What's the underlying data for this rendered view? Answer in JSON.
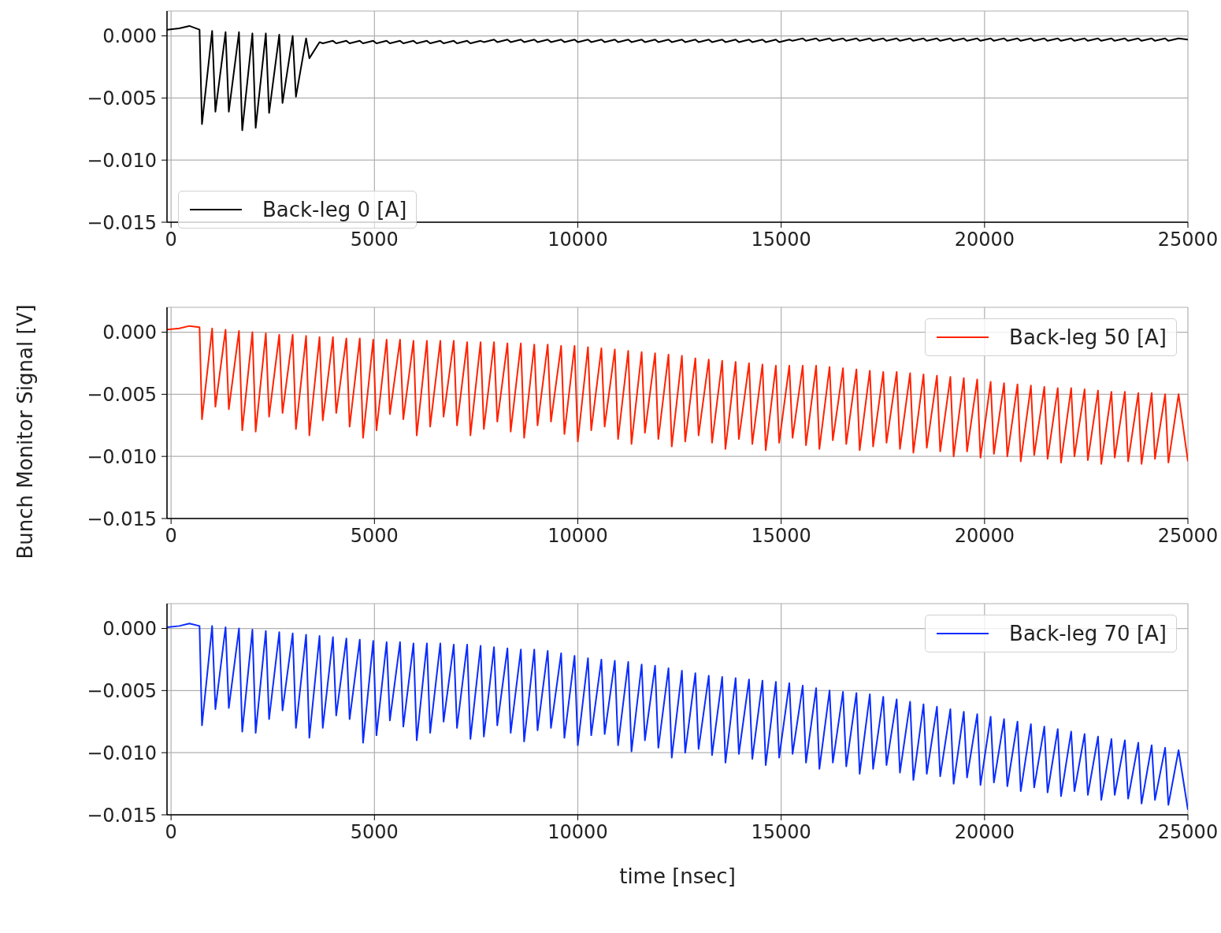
{
  "chart_data": [
    {
      "type": "line",
      "xlim": [
        -100,
        25000
      ],
      "xticks": [
        0,
        5000,
        10000,
        15000,
        20000,
        25000
      ],
      "ylim": [
        -0.015,
        0.002
      ],
      "yticks": [
        {
          "value": -0.015,
          "label": "−0.015"
        },
        {
          "value": -0.01,
          "label": "−0.010"
        },
        {
          "value": -0.005,
          "label": "−0.005"
        },
        {
          "value": 0,
          "label": "0.000"
        }
      ],
      "grid": true,
      "legend": "bottom left",
      "x": [
        -100,
        200,
        450,
        700,
        760,
        1010,
        1090,
        1340,
        1420,
        1670,
        1750,
        2000,
        2080,
        2330,
        2410,
        2660,
        2740,
        2990,
        3070,
        3320,
        3400,
        3650,
        3730,
        3980,
        4060,
        4310,
        4390,
        4640,
        4720,
        4970,
        5050,
        5300,
        5380,
        5630,
        5710,
        5960,
        6040,
        6290,
        6370,
        6620,
        6700,
        6950,
        7030,
        7280,
        7360,
        7610,
        7690,
        7940,
        8020,
        8270,
        8350,
        8600,
        8680,
        8930,
        9010,
        9260,
        9340,
        9590,
        9670,
        9920,
        10000,
        10250,
        10330,
        10580,
        10660,
        10910,
        10990,
        11240,
        11320,
        11570,
        11650,
        11900,
        11980,
        12230,
        12310,
        12560,
        12640,
        12890,
        12970,
        13220,
        13300,
        13550,
        13630,
        13880,
        13960,
        14210,
        14290,
        14540,
        14620,
        14870,
        14950,
        15200,
        15280,
        15530,
        15610,
        15860,
        15940,
        16190,
        16270,
        16520,
        16600,
        16850,
        16930,
        17180,
        17260,
        17510,
        17590,
        17840,
        17920,
        18170,
        18250,
        18500,
        18580,
        18830,
        18910,
        19160,
        19240,
        19490,
        19570,
        19820,
        19900,
        20150,
        20230,
        20480,
        20560,
        20810,
        20890,
        21140,
        21220,
        21470,
        21550,
        21800,
        21880,
        22130,
        22210,
        22460,
        22540,
        22790,
        22870,
        23120,
        23200,
        23450,
        23530,
        23780,
        23860,
        24110,
        24190,
        24440,
        24520,
        24770,
        25000
      ],
      "series": [
        {
          "name": "Back-leg 0 [A]",
          "color": "#000000",
          "values": [
            0.0005,
            0.0006,
            0.0008,
            0.0005,
            -0.0071,
            0.0004,
            -0.0061,
            0.0003,
            -0.0061,
            0.0003,
            -0.0076,
            0.0002,
            -0.0074,
            0.0002,
            -0.0062,
            0.0001,
            -0.0054,
            0.0,
            -0.0049,
            -0.0002,
            -0.0018,
            -0.0005,
            -0.0006,
            -0.0004,
            -0.0006,
            -0.0004,
            -0.0006,
            -0.0004,
            -0.0006,
            -0.0004,
            -0.0006,
            -0.0004,
            -0.0006,
            -0.0004,
            -0.0006,
            -0.0004,
            -0.0006,
            -0.0004,
            -0.0006,
            -0.0004,
            -0.0006,
            -0.0004,
            -0.0006,
            -0.0004,
            -0.0006,
            -0.0004,
            -0.0005,
            -0.0003,
            -0.0005,
            -0.0003,
            -0.0005,
            -0.0003,
            -0.0005,
            -0.0003,
            -0.0005,
            -0.0003,
            -0.0005,
            -0.0003,
            -0.0005,
            -0.0003,
            -0.0005,
            -0.0003,
            -0.0005,
            -0.0003,
            -0.0005,
            -0.0003,
            -0.0005,
            -0.0003,
            -0.0005,
            -0.0003,
            -0.0005,
            -0.0003,
            -0.0005,
            -0.0003,
            -0.0005,
            -0.0003,
            -0.0005,
            -0.0003,
            -0.0005,
            -0.0003,
            -0.0005,
            -0.0003,
            -0.0005,
            -0.0003,
            -0.0005,
            -0.0003,
            -0.0005,
            -0.0003,
            -0.0005,
            -0.0003,
            -0.0005,
            -0.0003,
            -0.0004,
            -0.0002,
            -0.0004,
            -0.0002,
            -0.0004,
            -0.0002,
            -0.0004,
            -0.0002,
            -0.0004,
            -0.0002,
            -0.0004,
            -0.0002,
            -0.0004,
            -0.0002,
            -0.0004,
            -0.0002,
            -0.0004,
            -0.0002,
            -0.0004,
            -0.0002,
            -0.0004,
            -0.0002,
            -0.0004,
            -0.0002,
            -0.0004,
            -0.0002,
            -0.0004,
            -0.0002,
            -0.0004,
            -0.0002,
            -0.0004,
            -0.0002,
            -0.0004,
            -0.0002,
            -0.0004,
            -0.0002,
            -0.0004,
            -0.0002,
            -0.0004,
            -0.0002,
            -0.0004,
            -0.0002,
            -0.0004,
            -0.0002,
            -0.0004,
            -0.0002,
            -0.0004,
            -0.0002,
            -0.0004,
            -0.0002,
            -0.0004,
            -0.0002,
            -0.0004,
            -0.0002,
            -0.0004,
            -0.0002,
            -0.0004,
            -0.0002,
            -0.0003
          ]
        }
      ]
    },
    {
      "type": "line",
      "xlim": [
        -100,
        25000
      ],
      "xticks": [
        0,
        5000,
        10000,
        15000,
        20000,
        25000
      ],
      "ylim": [
        -0.015,
        0.002
      ],
      "yticks": [
        {
          "value": -0.015,
          "label": "−0.015"
        },
        {
          "value": -0.01,
          "label": "−0.010"
        },
        {
          "value": -0.005,
          "label": "−0.005"
        },
        {
          "value": 0,
          "label": "0.000"
        }
      ],
      "grid": true,
      "legend": "top right",
      "ylabel": "Bunch Monitor Signal [V]",
      "x": [
        -100,
        200,
        450,
        700,
        760,
        1010,
        1090,
        1340,
        1420,
        1670,
        1750,
        2000,
        2080,
        2330,
        2410,
        2660,
        2740,
        2990,
        3070,
        3320,
        3400,
        3650,
        3730,
        3980,
        4060,
        4310,
        4390,
        4640,
        4720,
        4970,
        5050,
        5300,
        5380,
        5630,
        5710,
        5960,
        6040,
        6290,
        6370,
        6620,
        6700,
        6950,
        7030,
        7280,
        7360,
        7610,
        7690,
        7940,
        8020,
        8270,
        8350,
        8600,
        8680,
        8930,
        9010,
        9260,
        9340,
        9590,
        9670,
        9920,
        10000,
        10250,
        10330,
        10580,
        10660,
        10910,
        10990,
        11240,
        11320,
        11570,
        11650,
        11900,
        11980,
        12230,
        12310,
        12560,
        12640,
        12890,
        12970,
        13220,
        13300,
        13550,
        13630,
        13880,
        13960,
        14210,
        14290,
        14540,
        14620,
        14870,
        14950,
        15200,
        15280,
        15530,
        15610,
        15860,
        15940,
        16190,
        16270,
        16520,
        16600,
        16850,
        16930,
        17180,
        17260,
        17510,
        17590,
        17840,
        17920,
        18170,
        18250,
        18500,
        18580,
        18830,
        18910,
        19160,
        19240,
        19490,
        19570,
        19820,
        19900,
        20150,
        20230,
        20480,
        20560,
        20810,
        20890,
        21140,
        21220,
        21470,
        21550,
        21800,
        21880,
        22130,
        22210,
        22460,
        22540,
        22790,
        22870,
        23120,
        23200,
        23450,
        23530,
        23780,
        23860,
        24110,
        24190,
        24440,
        24520,
        24770,
        25000
      ],
      "series": [
        {
          "name": "Back-leg 50 [A]",
          "color": "#ff2200",
          "values": [
            0.0002,
            0.0003,
            0.0005,
            0.0004,
            -0.007,
            0.0003,
            -0.006,
            0.0002,
            -0.0062,
            0.0001,
            -0.0079,
            0.0,
            -0.008,
            -0.0001,
            -0.0068,
            -0.0002,
            -0.0065,
            -0.0002,
            -0.0078,
            -0.0003,
            -0.0083,
            -0.0004,
            -0.0071,
            -0.0004,
            -0.0065,
            -0.0005,
            -0.0076,
            -0.0005,
            -0.0085,
            -0.0006,
            -0.0079,
            -0.0006,
            -0.0066,
            -0.0006,
            -0.007,
            -0.0007,
            -0.0083,
            -0.0007,
            -0.0076,
            -0.0007,
            -0.0068,
            -0.0007,
            -0.0075,
            -0.0008,
            -0.0083,
            -0.0008,
            -0.0078,
            -0.0008,
            -0.0072,
            -0.0009,
            -0.008,
            -0.0009,
            -0.0085,
            -0.001,
            -0.0075,
            -0.001,
            -0.0072,
            -0.0011,
            -0.0082,
            -0.0011,
            -0.0088,
            -0.0012,
            -0.0079,
            -0.0013,
            -0.0076,
            -0.0014,
            -0.0086,
            -0.0015,
            -0.009,
            -0.0016,
            -0.0081,
            -0.0017,
            -0.0086,
            -0.0018,
            -0.0092,
            -0.0019,
            -0.0088,
            -0.0021,
            -0.0083,
            -0.0022,
            -0.0089,
            -0.0023,
            -0.0094,
            -0.0024,
            -0.0086,
            -0.0025,
            -0.009,
            -0.0026,
            -0.0095,
            -0.0027,
            -0.0089,
            -0.0027,
            -0.0085,
            -0.0027,
            -0.0091,
            -0.0027,
            -0.0094,
            -0.0028,
            -0.0087,
            -0.0029,
            -0.009,
            -0.003,
            -0.0095,
            -0.0031,
            -0.0092,
            -0.0032,
            -0.0089,
            -0.0032,
            -0.0094,
            -0.0033,
            -0.0097,
            -0.0034,
            -0.0093,
            -0.0035,
            -0.0096,
            -0.0036,
            -0.01,
            -0.0037,
            -0.0096,
            -0.0038,
            -0.0101,
            -0.004,
            -0.0098,
            -0.0041,
            -0.01,
            -0.0042,
            -0.0104,
            -0.0043,
            -0.0099,
            -0.0044,
            -0.0102,
            -0.0045,
            -0.0105,
            -0.0045,
            -0.01,
            -0.0046,
            -0.0103,
            -0.0047,
            -0.0106,
            -0.0048,
            -0.0101,
            -0.0048,
            -0.0104,
            -0.0049,
            -0.0106,
            -0.0049,
            -0.0102,
            -0.005,
            -0.0105,
            -0.005,
            -0.0104
          ]
        }
      ]
    },
    {
      "type": "line",
      "xlim": [
        -100,
        25000
      ],
      "xticks": [
        0,
        5000,
        10000,
        15000,
        20000,
        25000
      ],
      "ylim": [
        -0.015,
        0.002
      ],
      "yticks": [
        {
          "value": -0.015,
          "label": "−0.015"
        },
        {
          "value": -0.01,
          "label": "−0.010"
        },
        {
          "value": -0.005,
          "label": "−0.005"
        },
        {
          "value": 0,
          "label": "0.000"
        }
      ],
      "grid": true,
      "legend": "top right",
      "xlabel": "time [nsec]",
      "x": [
        -100,
        200,
        450,
        700,
        760,
        1010,
        1090,
        1340,
        1420,
        1670,
        1750,
        2000,
        2080,
        2330,
        2410,
        2660,
        2740,
        2990,
        3070,
        3320,
        3400,
        3650,
        3730,
        3980,
        4060,
        4310,
        4390,
        4640,
        4720,
        4970,
        5050,
        5300,
        5380,
        5630,
        5710,
        5960,
        6040,
        6290,
        6370,
        6620,
        6700,
        6950,
        7030,
        7280,
        7360,
        7610,
        7690,
        7940,
        8020,
        8270,
        8350,
        8600,
        8680,
        8930,
        9010,
        9260,
        9340,
        9590,
        9670,
        9920,
        10000,
        10250,
        10330,
        10580,
        10660,
        10910,
        10990,
        11240,
        11320,
        11570,
        11650,
        11900,
        11980,
        12230,
        12310,
        12560,
        12640,
        12890,
        12970,
        13220,
        13300,
        13550,
        13630,
        13880,
        13960,
        14210,
        14290,
        14540,
        14620,
        14870,
        14950,
        15200,
        15280,
        15530,
        15610,
        15860,
        15940,
        16190,
        16270,
        16520,
        16600,
        16850,
        16930,
        17180,
        17260,
        17510,
        17590,
        17840,
        17920,
        18170,
        18250,
        18500,
        18580,
        18830,
        18910,
        19160,
        19240,
        19490,
        19570,
        19820,
        19900,
        20150,
        20230,
        20480,
        20560,
        20810,
        20890,
        21140,
        21220,
        21470,
        21550,
        21800,
        21880,
        22130,
        22210,
        22460,
        22540,
        22790,
        22870,
        23120,
        23200,
        23450,
        23530,
        23780,
        23860,
        24110,
        24190,
        24440,
        24520,
        24770,
        25000
      ],
      "series": [
        {
          "name": "Back-leg 70 [A]",
          "color": "#0a2cff",
          "values": [
            0.0001,
            0.0002,
            0.0004,
            0.0002,
            -0.0078,
            0.0002,
            -0.0065,
            0.0001,
            -0.0064,
            0.0,
            -0.0083,
            -0.0001,
            -0.0084,
            -0.0002,
            -0.0073,
            -0.0003,
            -0.0066,
            -0.0004,
            -0.008,
            -0.0005,
            -0.0088,
            -0.0006,
            -0.008,
            -0.0007,
            -0.007,
            -0.0008,
            -0.0073,
            -0.0009,
            -0.0092,
            -0.001,
            -0.0086,
            -0.0011,
            -0.0074,
            -0.0011,
            -0.0079,
            -0.0012,
            -0.009,
            -0.0012,
            -0.0084,
            -0.0012,
            -0.0075,
            -0.0013,
            -0.008,
            -0.0013,
            -0.0089,
            -0.0014,
            -0.0087,
            -0.0015,
            -0.0078,
            -0.0016,
            -0.0084,
            -0.0017,
            -0.0091,
            -0.0017,
            -0.0082,
            -0.0018,
            -0.008,
            -0.002,
            -0.0088,
            -0.0022,
            -0.0094,
            -0.0024,
            -0.0086,
            -0.0025,
            -0.0085,
            -0.0026,
            -0.0094,
            -0.0027,
            -0.0099,
            -0.0029,
            -0.009,
            -0.003,
            -0.0096,
            -0.0032,
            -0.0104,
            -0.0034,
            -0.01,
            -0.0036,
            -0.0097,
            -0.0038,
            -0.0102,
            -0.0039,
            -0.0108,
            -0.004,
            -0.0101,
            -0.0041,
            -0.0105,
            -0.0042,
            -0.011,
            -0.0043,
            -0.0104,
            -0.0044,
            -0.0101,
            -0.0046,
            -0.0108,
            -0.0048,
            -0.0113,
            -0.005,
            -0.0108,
            -0.0051,
            -0.0111,
            -0.0052,
            -0.0117,
            -0.0053,
            -0.0113,
            -0.0055,
            -0.011,
            -0.0057,
            -0.0116,
            -0.0059,
            -0.0122,
            -0.0061,
            -0.0117,
            -0.0063,
            -0.0119,
            -0.0065,
            -0.0125,
            -0.0067,
            -0.012,
            -0.0069,
            -0.0126,
            -0.0071,
            -0.0124,
            -0.0073,
            -0.0127,
            -0.0075,
            -0.0131,
            -0.0077,
            -0.0128,
            -0.0079,
            -0.0132,
            -0.0081,
            -0.0135,
            -0.0083,
            -0.0131,
            -0.0085,
            -0.0134,
            -0.0087,
            -0.0138,
            -0.0089,
            -0.0134,
            -0.009,
            -0.0137,
            -0.0092,
            -0.0141,
            -0.0094,
            -0.0138,
            -0.0096,
            -0.0142,
            -0.0098,
            -0.0146
          ]
        }
      ]
    }
  ]
}
